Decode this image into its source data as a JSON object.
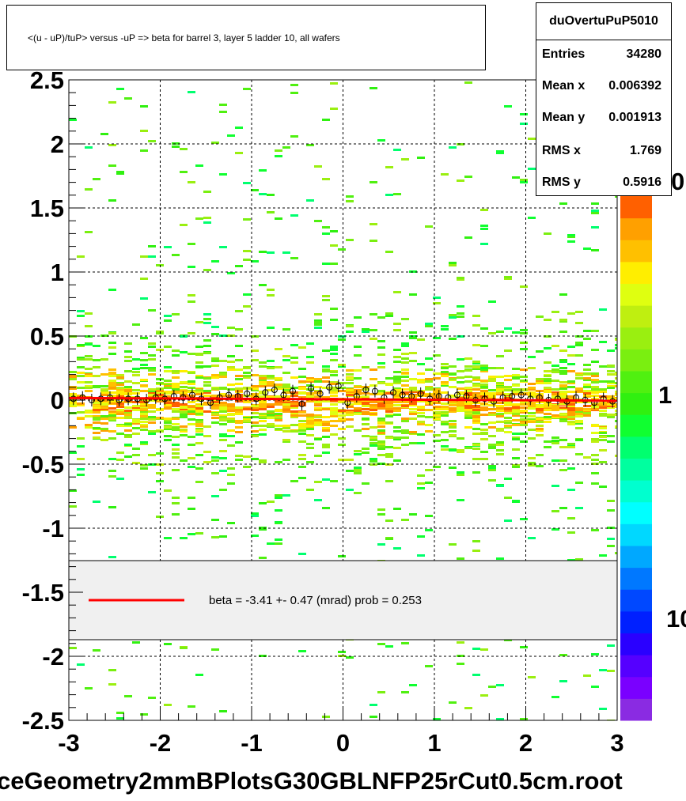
{
  "title": "<(u - uP)/tuP> versus  -uP => beta for barrel 3, layer 5 ladder 10, all wafers",
  "stats": {
    "name": "duOvertuPuP5010",
    "rows": [
      {
        "label": "Entries",
        "value": "34280"
      },
      {
        "label": "Mean x",
        "value": "0.006392"
      },
      {
        "label": "Mean y",
        "value": "0.001913"
      },
      {
        "label": "RMS x",
        "value": "1.769"
      },
      {
        "label": "RMS y",
        "value": "0.5916"
      }
    ]
  },
  "legend": {
    "text": "beta =   -3.41 +-  0.47 (mrad) prob = 0.253",
    "line_color": "#ff0000"
  },
  "footer": "ceGeometry2mmBPlotsG30GBLNFP25rCut0.5cm.root",
  "palette_labels": [
    "0",
    "1",
    "10"
  ],
  "chart_data": {
    "type": "heatmap",
    "title": "<(u - uP)/tuP> versus  -uP => beta for barrel 3, layer 5 ladder 10, all wafers",
    "xlim": [
      -3,
      3
    ],
    "ylim": [
      -2.5,
      2.5
    ],
    "x_ticks": [
      "-3",
      "-2",
      "-1",
      "0",
      "1",
      "2",
      "3"
    ],
    "y_ticks": [
      "2.5",
      "2",
      "1.5",
      "1",
      "0.5",
      "0",
      "-0.5",
      "-1",
      "-1.5",
      "-2",
      "-2.5"
    ],
    "grid": true,
    "fit": {
      "name": "beta",
      "slope_mrad": -3.41,
      "error_mrad": 0.47,
      "prob": 0.253,
      "color": "#ff0000"
    },
    "profile": {
      "x": [
        -2.95,
        -2.85,
        -2.75,
        -2.65,
        -2.55,
        -2.45,
        -2.35,
        -2.25,
        -2.15,
        -2.05,
        -1.95,
        -1.85,
        -1.75,
        -1.65,
        -1.55,
        -1.45,
        -1.35,
        -1.25,
        -1.15,
        -1.05,
        -0.95,
        -0.85,
        -0.75,
        -0.65,
        -0.55,
        -0.45,
        -0.35,
        -0.25,
        -0.15,
        -0.05,
        0.05,
        0.15,
        0.25,
        0.35,
        0.45,
        0.55,
        0.65,
        0.75,
        0.85,
        0.95,
        1.05,
        1.15,
        1.25,
        1.35,
        1.45,
        1.55,
        1.65,
        1.75,
        1.85,
        1.95,
        2.05,
        2.15,
        2.25,
        2.35,
        2.45,
        2.55,
        2.65,
        2.75,
        2.85,
        2.95
      ],
      "y": [
        0.01,
        0.02,
        0.0,
        0.01,
        0.02,
        0.0,
        0.01,
        0.01,
        0.0,
        0.02,
        0.01,
        0.03,
        0.02,
        0.04,
        0.01,
        -0.02,
        0.02,
        0.04,
        0.03,
        0.05,
        0.01,
        0.06,
        0.08,
        0.04,
        0.07,
        -0.03,
        0.09,
        0.05,
        0.1,
        0.11,
        -0.02,
        0.03,
        0.08,
        0.07,
        0.02,
        0.06,
        0.04,
        0.03,
        0.05,
        0.01,
        0.03,
        0.02,
        0.04,
        0.03,
        0.0,
        0.01,
        -0.01,
        0.02,
        0.03,
        0.04,
        0.01,
        0.02,
        0.0,
        0.01,
        -0.01,
        0.02,
        0.0,
        -0.02,
        0.01,
        -0.01
      ]
    },
    "palette": [
      "#8a2be2",
      "#7a00ff",
      "#5500ff",
      "#2a00ff",
      "#0020ff",
      "#0048ff",
      "#0078ff",
      "#00a8ff",
      "#00d8ff",
      "#00ffff",
      "#00ffcf",
      "#00ff9f",
      "#00ff6f",
      "#10ff30",
      "#30f010",
      "#50f010",
      "#7aef10",
      "#9aef10",
      "#bfef10",
      "#dfff10",
      "#ffee00",
      "#ffc000",
      "#ffa000",
      "#ff6000"
    ]
  }
}
